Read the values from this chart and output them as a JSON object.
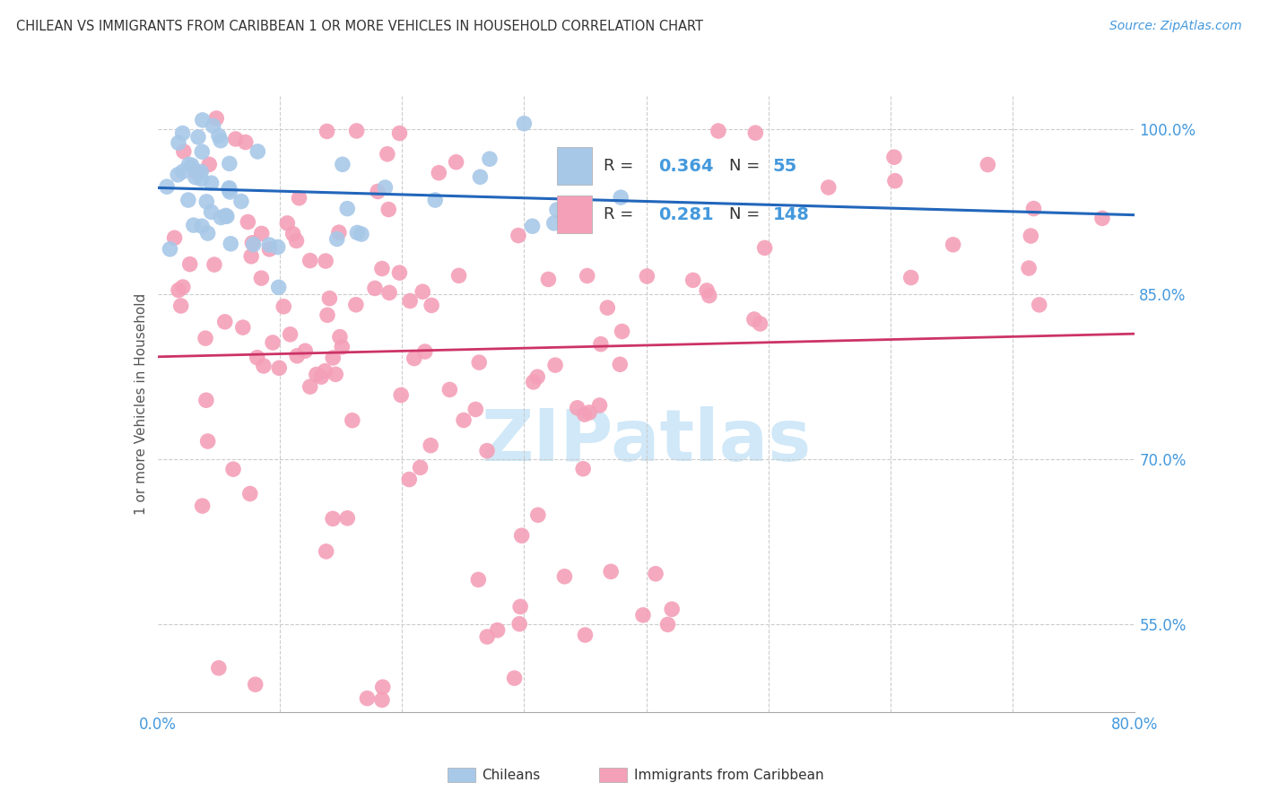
{
  "title": "CHILEAN VS IMMIGRANTS FROM CARIBBEAN 1 OR MORE VEHICLES IN HOUSEHOLD CORRELATION CHART",
  "source": "Source: ZipAtlas.com",
  "ylabel": "1 or more Vehicles in Household",
  "xlim": [
    0.0,
    80.0
  ],
  "ylim": [
    47.0,
    103.0
  ],
  "yticks": [
    55.0,
    70.0,
    85.0,
    100.0
  ],
  "ytick_labels": [
    "55.0%",
    "70.0%",
    "85.0%",
    "100.0%"
  ],
  "R_blue": 0.364,
  "N_blue": 55,
  "R_pink": 0.281,
  "N_pink": 148,
  "blue_color": "#a8c8e8",
  "blue_line_color": "#2266bb",
  "pink_color": "#f4a0b8",
  "pink_line_color": "#cc3366",
  "background_color": "#ffffff",
  "grid_color": "#cccccc",
  "title_color": "#333333",
  "axis_label_color": "#555555",
  "tick_label_color": "#4499dd",
  "watermark_color": "#d0e8f8",
  "legend_blue_label": "Chileans",
  "legend_pink_label": "Immigrants from Caribbean"
}
